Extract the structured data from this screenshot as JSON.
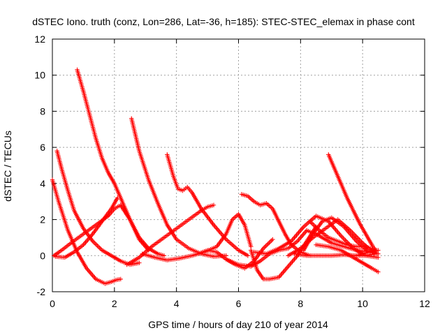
{
  "chart_data": {
    "type": "scatter",
    "title": "dSTEC Iono. truth (conz, Lon=286, Lat=-36, h=185): STEC-STEC_elemax in phase cont",
    "xlabel": "GPS time / hours of day 210 of year 2014",
    "ylabel": "dSTEC  / TECUs",
    "xlim": [
      0,
      12
    ],
    "ylim": [
      -2,
      12
    ],
    "xticks": [
      0,
      2,
      4,
      6,
      8,
      10,
      12
    ],
    "yticks": [
      -2,
      0,
      2,
      4,
      6,
      8,
      10,
      12
    ],
    "grid": true,
    "marker": "plus",
    "color": "#ff0000",
    "series": [
      {
        "x": [
          0.0,
          0.2,
          0.5,
          0.8,
          1.1,
          1.4,
          1.7,
          1.9,
          2.05,
          2.2
        ],
        "y": [
          4.2,
          3.0,
          1.4,
          0.2,
          -0.7,
          -1.3,
          -1.55,
          -1.45,
          -1.35,
          -1.3
        ]
      },
      {
        "x": [
          0.05,
          0.3,
          0.6,
          1.0,
          1.4,
          1.8,
          2.0,
          2.2,
          2.5,
          2.8,
          3.1,
          3.4,
          3.6
        ],
        "y": [
          0.0,
          0.3,
          0.7,
          1.2,
          1.7,
          2.2,
          2.6,
          2.8,
          2.0,
          1.0,
          0.4,
          0.1,
          0.0
        ]
      },
      {
        "x": [
          0.15,
          0.3,
          0.5,
          0.7,
          1.0,
          1.3,
          1.6,
          1.9,
          2.2,
          2.5,
          2.8
        ],
        "y": [
          5.8,
          4.8,
          3.6,
          2.5,
          1.5,
          0.8,
          0.3,
          0.0,
          -0.3,
          -0.5,
          -0.4
        ]
      },
      {
        "x": [
          0.1,
          0.4,
          0.7,
          1.0,
          1.3,
          1.6,
          1.9,
          2.1
        ],
        "y": [
          -0.05,
          -0.1,
          0.2,
          0.6,
          1.2,
          1.9,
          2.6,
          3.2
        ]
      },
      {
        "x": [
          0.8,
          1.0,
          1.2,
          1.4,
          1.6,
          1.8,
          2.0,
          2.2,
          2.5,
          2.8,
          3.1
        ],
        "y": [
          10.3,
          9.1,
          7.8,
          6.5,
          5.4,
          4.6,
          4.0,
          3.2,
          2.0,
          0.9,
          0.3
        ]
      },
      {
        "x": [
          2.55,
          2.8,
          3.1,
          3.4,
          3.7,
          4.0,
          4.4,
          4.8,
          5.2,
          5.6
        ],
        "y": [
          7.6,
          5.8,
          4.2,
          2.9,
          1.7,
          0.9,
          0.4,
          0.1,
          -0.05,
          0.0
        ]
      },
      {
        "x": [
          2.4,
          2.8,
          3.2,
          3.6,
          4.0,
          4.4,
          4.8,
          5.0,
          5.2
        ],
        "y": [
          -0.5,
          -0.1,
          0.5,
          1.0,
          1.5,
          2.0,
          2.5,
          2.7,
          2.8
        ]
      },
      {
        "x": [
          3.7,
          3.9,
          4.05,
          4.2,
          4.35,
          4.5,
          4.8,
          5.2,
          5.6,
          6.0,
          6.3
        ],
        "y": [
          5.6,
          4.4,
          3.7,
          3.6,
          3.8,
          3.5,
          2.6,
          1.7,
          0.9,
          0.3,
          0.0
        ]
      },
      {
        "x": [
          2.9,
          3.3,
          3.7,
          4.1,
          4.5,
          4.9,
          5.3,
          5.6,
          5.8,
          6.0,
          6.2,
          6.4
        ],
        "y": [
          0.1,
          -0.1,
          -0.25,
          -0.15,
          0.0,
          0.2,
          0.5,
          1.2,
          2.0,
          2.3,
          1.7,
          0.5
        ]
      },
      {
        "x": [
          4.7,
          5.0,
          5.3,
          5.6,
          5.9,
          6.2,
          6.5,
          6.8,
          7.1
        ],
        "y": [
          0.1,
          0.3,
          0.2,
          -0.2,
          -0.5,
          -0.7,
          -0.3,
          0.4,
          0.9
        ]
      },
      {
        "x": [
          6.1,
          6.3,
          6.5,
          6.7,
          6.9,
          7.1,
          7.3,
          7.5,
          7.7,
          8.0,
          8.3
        ],
        "y": [
          3.4,
          3.3,
          3.0,
          2.8,
          2.9,
          2.6,
          1.9,
          1.2,
          0.6,
          0.2,
          0.0
        ]
      },
      {
        "x": [
          5.6,
          6.0,
          6.4,
          6.7,
          7.0,
          7.3,
          7.6,
          7.9,
          8.2,
          8.6,
          9.0,
          9.4,
          9.8,
          10.3
        ],
        "y": [
          -0.2,
          -0.5,
          -0.6,
          -0.3,
          0.1,
          0.3,
          0.4,
          0.8,
          1.4,
          1.1,
          0.7,
          0.5,
          0.3,
          0.2
        ]
      },
      {
        "x": [
          6.4,
          6.6,
          6.8,
          7.0,
          7.3,
          7.6,
          7.9,
          8.2,
          8.5
        ],
        "y": [
          0.3,
          -0.8,
          -1.3,
          -1.3,
          -1.2,
          -0.6,
          0.0,
          0.8,
          1.6
        ]
      },
      {
        "x": [
          6.5,
          6.9,
          7.3,
          7.7,
          8.1,
          8.5,
          8.9,
          9.3,
          9.7,
          10.1,
          10.5
        ],
        "y": [
          0.2,
          0.1,
          0.4,
          0.8,
          1.6,
          2.2,
          1.9,
          1.1,
          0.4,
          0.0,
          -0.1
        ]
      },
      {
        "x": [
          7.6,
          8.0,
          8.4,
          8.8,
          9.2,
          9.6,
          10.0,
          10.4
        ],
        "y": [
          0.0,
          0.4,
          1.0,
          1.5,
          2.0,
          1.4,
          0.7,
          0.1
        ]
      },
      {
        "x": [
          8.1,
          8.4,
          8.7,
          9.0,
          9.4,
          9.8,
          10.2,
          10.5
        ],
        "y": [
          0.3,
          1.2,
          1.9,
          2.1,
          1.6,
          0.8,
          0.2,
          0.1
        ]
      },
      {
        "x": [
          8.3,
          8.6,
          8.9,
          9.2,
          9.5,
          9.8,
          10.1,
          10.4
        ],
        "y": [
          1.9,
          1.4,
          1.0,
          0.8,
          0.6,
          0.5,
          0.5,
          0.3
        ]
      },
      {
        "x": [
          8.9,
          9.1,
          9.3,
          9.5,
          9.7,
          9.9,
          10.1,
          10.3,
          10.45
        ],
        "y": [
          5.6,
          4.8,
          4.0,
          3.2,
          2.5,
          1.8,
          1.2,
          0.6,
          0.2
        ]
      },
      {
        "x": [
          7.8,
          8.2,
          8.6,
          9.0,
          9.4,
          9.8,
          10.1,
          10.4
        ],
        "y": [
          0.1,
          0.0,
          0.0,
          0.0,
          0.05,
          0.0,
          0.0,
          0.1
        ]
      },
      {
        "x": [
          8.5,
          8.9,
          9.3,
          9.7,
          10.0,
          10.3,
          10.5
        ],
        "y": [
          0.6,
          0.5,
          0.3,
          -0.1,
          -0.4,
          -0.7,
          -0.9
        ]
      },
      {
        "x": [
          9.8,
          10.0,
          10.2,
          10.4,
          10.5
        ],
        "y": [
          0.0,
          0.1,
          0.2,
          0.3,
          0.3
        ]
      }
    ]
  }
}
